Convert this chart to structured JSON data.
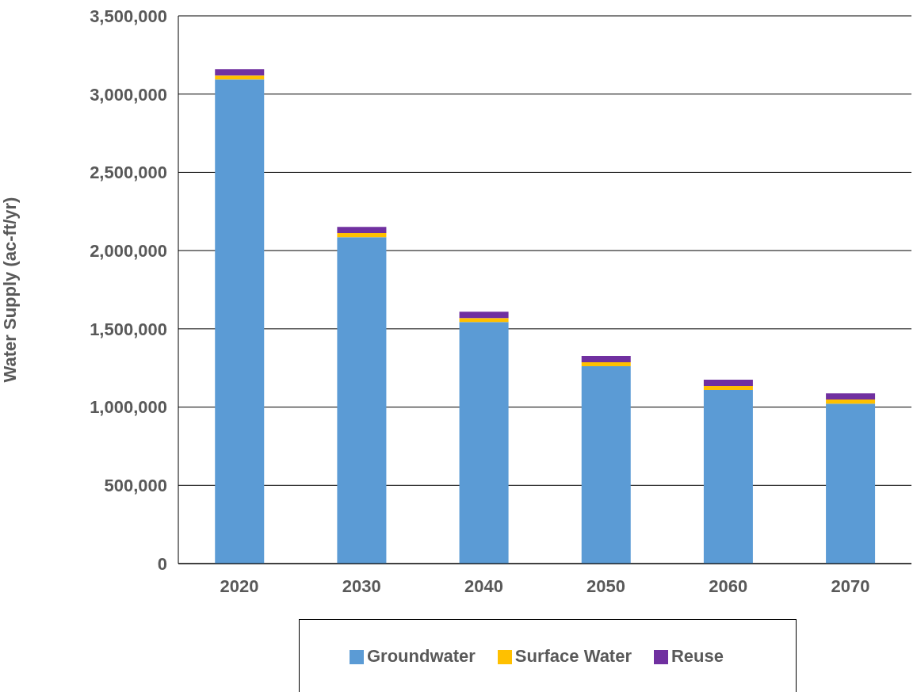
{
  "chart_data": {
    "type": "bar",
    "stacked": true,
    "ylabel": "Water Supply (ac-ft/yr)",
    "categories": [
      "2020",
      "2030",
      "2040",
      "2050",
      "2060",
      "2070"
    ],
    "series": [
      {
        "name": "Groundwater",
        "color": "#5b9bd5",
        "values": [
          3093000,
          2086000,
          1543000,
          1261000,
          1109000,
          1022000
        ]
      },
      {
        "name": "Surface Water",
        "color": "#ffc000",
        "values": [
          26000,
          26000,
          26000,
          26000,
          26000,
          26000
        ]
      },
      {
        "name": "Reuse",
        "color": "#7030a0",
        "values": [
          40000,
          40000,
          40000,
          40000,
          40000,
          40000
        ]
      }
    ],
    "ylim": [
      0,
      3500000
    ],
    "yticks": [
      {
        "value": 0,
        "label": "0"
      },
      {
        "value": 500000,
        "label": "500,000"
      },
      {
        "value": 1000000,
        "label": "1,000,000"
      },
      {
        "value": 1500000,
        "label": "1,500,000"
      },
      {
        "value": 2000000,
        "label": "2,000,000"
      },
      {
        "value": 2500000,
        "label": "2,500,000"
      },
      {
        "value": 3000000,
        "label": "3,000,000"
      },
      {
        "value": 3500000,
        "label": "3,500,000"
      }
    ],
    "grid": "y",
    "legend": "bottom"
  }
}
